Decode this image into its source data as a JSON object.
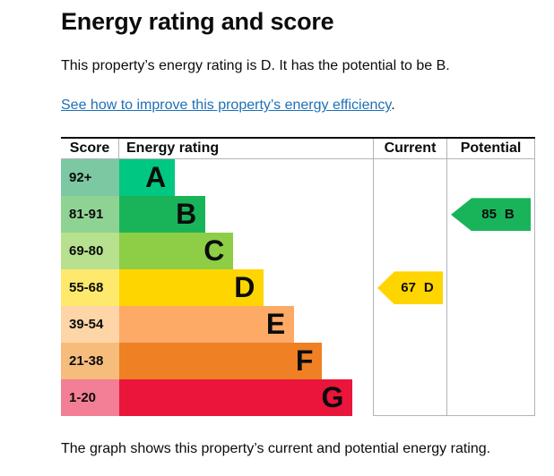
{
  "page": {
    "title": "Energy rating and score",
    "intro": "This property’s energy rating is D. It has the potential to be B.",
    "link_text": "See how to improve this property’s energy efficiency",
    "link_suffix": ".",
    "footer": "The graph shows this property’s current and potential energy rating."
  },
  "colors": {
    "text": "#0b0c0c",
    "link_blue": "#1d70b8",
    "grid_line": "#b1b4b6",
    "chart_top_border": "#0b0c0c"
  },
  "chart_data": {
    "type": "bar",
    "title": "Energy rating and score",
    "headers": {
      "score": "Score",
      "rating": "Energy rating",
      "current": "Current",
      "potential": "Potential"
    },
    "bands": [
      {
        "score": "92+",
        "letter": "A",
        "bar_color": "#00c781",
        "score_color": "#7bc8a3",
        "width_pct": 22
      },
      {
        "score": "81-91",
        "letter": "B",
        "bar_color": "#19b459",
        "score_color": "#8fd394",
        "width_pct": 34
      },
      {
        "score": "69-80",
        "letter": "C",
        "bar_color": "#8dce46",
        "score_color": "#b7e18e",
        "width_pct": 45
      },
      {
        "score": "55-68",
        "letter": "D",
        "bar_color": "#ffd500",
        "score_color": "#ffe96c",
        "width_pct": 57
      },
      {
        "score": "39-54",
        "letter": "E",
        "bar_color": "#fcaa65",
        "score_color": "#fdd5a7",
        "width_pct": 69
      },
      {
        "score": "21-38",
        "letter": "F",
        "bar_color": "#ef8023",
        "score_color": "#f6bc7c",
        "width_pct": 80
      },
      {
        "score": "1-20",
        "letter": "G",
        "bar_color": "#e9153b",
        "score_color": "#f27f95",
        "width_pct": 92
      }
    ],
    "current": {
      "value": "67",
      "letter": "D",
      "band_index": 3,
      "color": "#ffd500"
    },
    "potential": {
      "value": "85",
      "letter": "B",
      "band_index": 1,
      "color": "#19b459"
    }
  }
}
